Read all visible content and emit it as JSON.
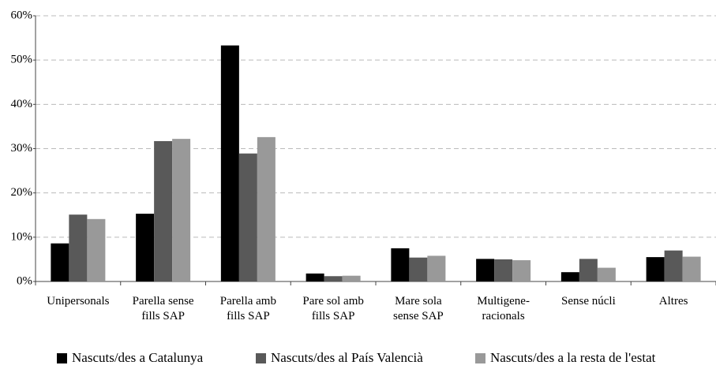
{
  "chart_data": {
    "type": "bar",
    "categories": [
      "Unipersonals",
      "Parella sense\nfills SAP",
      "Parella amb\nfills SAP",
      "Pare sol amb\nfills SAP",
      "Mare sola\nsense SAP",
      "Multigene-\nracionals",
      "Sense núcli",
      "Altres"
    ],
    "series": [
      {
        "name": "Nascuts/des a Catalunya",
        "color": "#000000",
        "values": [
          8.6,
          15.3,
          53.3,
          1.8,
          7.5,
          5.1,
          2.1,
          5.5
        ]
      },
      {
        "name": "Nascuts/des al País Valencià",
        "color": "#595959",
        "values": [
          15.1,
          31.7,
          28.9,
          1.2,
          5.4,
          5.0,
          5.1,
          7.0
        ]
      },
      {
        "name": "Nascuts/des a la resta de l'estat",
        "color": "#999999",
        "values": [
          14.1,
          32.2,
          32.6,
          1.3,
          5.8,
          4.8,
          3.1,
          5.6
        ]
      }
    ],
    "ylim": [
      0,
      60
    ],
    "yticks": [
      {
        "value": 0,
        "label": "0%"
      },
      {
        "value": 10,
        "label": "10%"
      },
      {
        "value": 20,
        "label": "20%"
      },
      {
        "value": 30,
        "label": "30%"
      },
      {
        "value": 40,
        "label": "40%"
      },
      {
        "value": 50,
        "label": "50%"
      },
      {
        "value": 60,
        "label": "60%"
      }
    ],
    "grid": true,
    "legend": "bottom"
  }
}
